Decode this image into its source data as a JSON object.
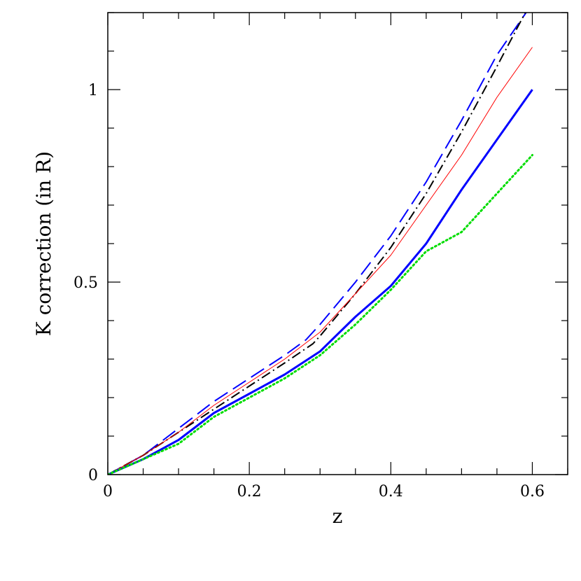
{
  "chart_data": {
    "type": "line",
    "xlabel": "z",
    "ylabel": "K correction (in R)",
    "xlim": [
      0,
      0.65
    ],
    "ylim": [
      0,
      1.2
    ],
    "xticks": [
      {
        "value": 0,
        "label": "0"
      },
      {
        "value": 0.2,
        "label": "0.2"
      },
      {
        "value": 0.4,
        "label": "0.4"
      },
      {
        "value": 0.6,
        "label": "0.6"
      }
    ],
    "yticks": [
      {
        "value": 0,
        "label": "0"
      },
      {
        "value": 0.5,
        "label": "0.5"
      },
      {
        "value": 1,
        "label": "1"
      }
    ],
    "x_minor_step": 0.05,
    "y_minor_step": 0.1,
    "grid": false,
    "legend": "none",
    "series": [
      {
        "color": "#0000ff",
        "style": "dashed",
        "width": 2,
        "x": [
          0,
          0.05,
          0.1,
          0.15,
          0.2,
          0.25,
          0.28,
          0.3,
          0.35,
          0.4,
          0.45,
          0.5,
          0.55,
          0.595
        ],
        "y": [
          0,
          0.05,
          0.12,
          0.19,
          0.25,
          0.31,
          0.35,
          0.39,
          0.5,
          0.62,
          0.76,
          0.92,
          1.09,
          1.21
        ]
      },
      {
        "color": "#000000",
        "style": "dashdot",
        "width": 2,
        "x": [
          0,
          0.05,
          0.1,
          0.15,
          0.2,
          0.25,
          0.29,
          0.3,
          0.35,
          0.4,
          0.45,
          0.5,
          0.55,
          0.59
        ],
        "y": [
          0,
          0.05,
          0.11,
          0.17,
          0.23,
          0.29,
          0.34,
          0.36,
          0.47,
          0.59,
          0.73,
          0.89,
          1.06,
          1.2
        ]
      },
      {
        "color": "#ff0000",
        "style": "solid",
        "width": 1,
        "x": [
          0,
          0.05,
          0.1,
          0.15,
          0.2,
          0.25,
          0.3,
          0.35,
          0.4,
          0.45,
          0.5,
          0.55,
          0.6
        ],
        "y": [
          0,
          0.05,
          0.11,
          0.18,
          0.24,
          0.3,
          0.37,
          0.47,
          0.57,
          0.7,
          0.83,
          0.98,
          1.11
        ]
      },
      {
        "color": "#0000ff",
        "style": "solid",
        "width": 3,
        "x": [
          0,
          0.05,
          0.1,
          0.15,
          0.2,
          0.25,
          0.3,
          0.35,
          0.4,
          0.45,
          0.5,
          0.55,
          0.6
        ],
        "y": [
          0,
          0.04,
          0.09,
          0.16,
          0.21,
          0.26,
          0.32,
          0.41,
          0.49,
          0.6,
          0.74,
          0.87,
          1.0
        ]
      },
      {
        "color": "#00dd00",
        "style": "dotted",
        "width": 3,
        "x": [
          0,
          0.05,
          0.1,
          0.15,
          0.2,
          0.25,
          0.3,
          0.35,
          0.4,
          0.45,
          0.5,
          0.55,
          0.6
        ],
        "y": [
          0,
          0.04,
          0.08,
          0.15,
          0.2,
          0.25,
          0.31,
          0.39,
          0.48,
          0.58,
          0.63,
          0.73,
          0.83
        ]
      }
    ]
  }
}
